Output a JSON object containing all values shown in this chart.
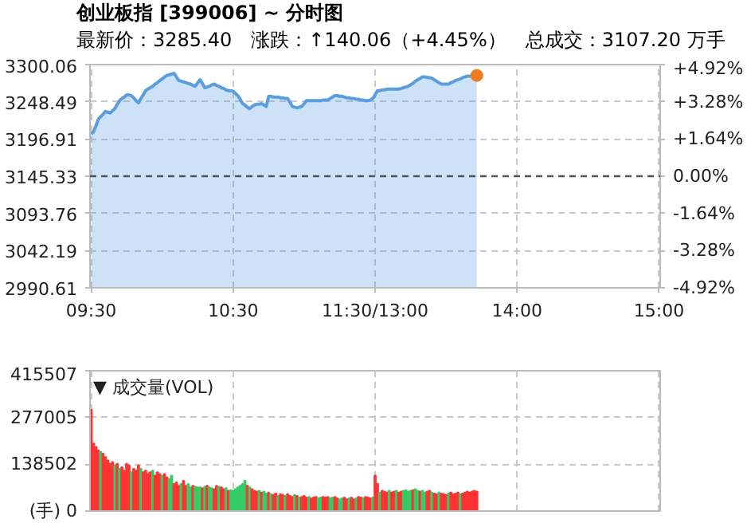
{
  "chart_data": [
    {
      "type": "area",
      "title": "创业板指 [399006] ~ 分时图",
      "subtitle": "最新价：3285.40　涨跌：↑140.06（+4.45%）　总成交：3107.20 万手",
      "categories": [
        "09:30",
        null,
        null,
        null,
        null,
        null,
        null,
        null,
        null,
        null,
        null,
        null,
        null,
        null,
        null,
        null,
        null,
        null,
        null,
        null,
        null,
        null,
        null,
        null,
        null,
        null,
        null,
        null,
        null,
        null,
        null,
        null,
        null,
        null,
        null,
        null,
        null,
        null,
        null,
        null,
        null,
        null,
        null,
        null,
        null,
        null,
        null,
        null,
        null,
        null,
        null,
        null,
        null,
        null,
        null,
        null,
        null,
        null,
        null,
        null,
        "10:30",
        null,
        null,
        null,
        null,
        null,
        null,
        null,
        null,
        null,
        null,
        null,
        null,
        null,
        null,
        null,
        null,
        null,
        null,
        null,
        null,
        null,
        null,
        null,
        null,
        null,
        null,
        null,
        null,
        null,
        null,
        null,
        null,
        null,
        null,
        null,
        null,
        null,
        null,
        null,
        null,
        null,
        null,
        null,
        null,
        null,
        null,
        null,
        null,
        null,
        null,
        null,
        null,
        null,
        null,
        null,
        null,
        null,
        null,
        null,
        "11:30/13:00",
        null,
        null,
        null,
        null,
        null,
        null,
        null,
        null,
        null,
        null,
        null,
        null,
        null,
        null,
        null,
        null,
        null,
        null,
        null,
        null,
        null,
        null,
        null,
        null,
        null,
        null,
        null,
        null,
        null,
        null,
        null,
        null,
        null,
        null,
        null,
        null,
        null,
        null,
        null,
        null,
        null,
        null,
        null,
        null,
        null,
        null,
        null,
        null,
        null,
        null,
        null,
        null,
        null,
        null,
        null,
        null,
        null,
        null,
        null,
        "14:00",
        null,
        null,
        null,
        null,
        null,
        null,
        null,
        null,
        null,
        null,
        null,
        null,
        null,
        null,
        null,
        null,
        null,
        null,
        null,
        null,
        null,
        null,
        null,
        null,
        null,
        null,
        null,
        null,
        null,
        null,
        null,
        null,
        null,
        null,
        null,
        null,
        null,
        null,
        null,
        null,
        null,
        null,
        null,
        null,
        null,
        null,
        null,
        null,
        null,
        null,
        null,
        null,
        null,
        null,
        null,
        null,
        null,
        null,
        null,
        "15:00"
      ],
      "series": [
        {
          "type": "area",
          "color": "#5b9ee0",
          "values": [
            3204,
            3207,
            3215,
            3224,
            3228,
            3231,
            3235,
            3234,
            3233,
            3236,
            3239,
            3245,
            3250,
            3253,
            3255,
            3258,
            3258,
            3257,
            3254,
            3250,
            3247,
            3253,
            3258,
            3264,
            3266,
            3268,
            3270,
            3273,
            3275,
            3278,
            3280,
            3283,
            3285,
            3286,
            3287,
            3288,
            3283,
            3278,
            3277,
            3276,
            3275,
            3274,
            3273,
            3271,
            3270,
            3275,
            3279,
            3274,
            3268,
            3269,
            3270,
            3272,
            3273,
            3271,
            3270,
            3268,
            3267,
            3265,
            3264,
            3264,
            3263,
            3260,
            3257,
            3252,
            3246,
            3244,
            3241,
            3239,
            3242,
            3244,
            3245,
            3245,
            3246,
            3244,
            3242,
            3256,
            3256,
            3255,
            3255,
            3255,
            3254,
            3254,
            3253,
            3253,
            3248,
            3242,
            3241,
            3240,
            3241,
            3242,
            3246,
            3250,
            3250,
            3250,
            3250,
            3250,
            3250,
            3250,
            3251,
            3251,
            3251,
            3253,
            3255,
            3257,
            3257,
            3256,
            3256,
            3255,
            3254,
            3254,
            3253,
            3253,
            3252,
            3252,
            3251,
            3251,
            3250,
            3250,
            3251,
            3253,
            3258,
            3264,
            3264,
            3265,
            3265,
            3266,
            3266,
            3266,
            3266,
            3266,
            3266,
            3267,
            3268,
            3269,
            3270,
            3272,
            3274,
            3277,
            3279,
            3281,
            3283,
            3283,
            3282,
            3282,
            3281,
            3279,
            3277,
            3275,
            3273,
            3273,
            3273,
            3273,
            3275,
            3276,
            3278,
            3279,
            3280,
            3282,
            3283,
            3284,
            3284,
            3284,
            3285,
            3285,
            null,
            null,
            null,
            null,
            null,
            null,
            null,
            null,
            null,
            null,
            null,
            null,
            null,
            null,
            null,
            null,
            null,
            null,
            null,
            null,
            null,
            null,
            null,
            null,
            null,
            null,
            null,
            null,
            null,
            null,
            null,
            null,
            null,
            null,
            null,
            null,
            null,
            null,
            null,
            null,
            null,
            null,
            null,
            null,
            null,
            null,
            null,
            null,
            null,
            null,
            null,
            null,
            null,
            null,
            null,
            null,
            null,
            null,
            null,
            null,
            null,
            null,
            null,
            null,
            null,
            null,
            null,
            null,
            null,
            null,
            null,
            null,
            null,
            null,
            null,
            null,
            null
          ]
        },
        {
          "type": "scatter",
          "marker": "circle",
          "color": "#f07a1e",
          "values": [
            null,
            null,
            null,
            null,
            null,
            null,
            null,
            null,
            null,
            null,
            null,
            null,
            null,
            null,
            null,
            null,
            null,
            null,
            null,
            null,
            null,
            null,
            null,
            null,
            null,
            null,
            null,
            null,
            null,
            null,
            null,
            null,
            null,
            null,
            null,
            null,
            null,
            null,
            null,
            null,
            null,
            null,
            null,
            null,
            null,
            null,
            null,
            null,
            null,
            null,
            null,
            null,
            null,
            null,
            null,
            null,
            null,
            null,
            null,
            null,
            null,
            null,
            null,
            null,
            null,
            null,
            null,
            null,
            null,
            null,
            null,
            null,
            null,
            null,
            null,
            null,
            null,
            null,
            null,
            null,
            null,
            null,
            null,
            null,
            null,
            null,
            null,
            null,
            null,
            null,
            null,
            null,
            null,
            null,
            null,
            null,
            null,
            null,
            null,
            null,
            null,
            null,
            null,
            null,
            null,
            null,
            null,
            null,
            null,
            null,
            null,
            null,
            null,
            null,
            null,
            null,
            null,
            null,
            null,
            null,
            null,
            null,
            null,
            null,
            null,
            null,
            null,
            null,
            null,
            null,
            null,
            null,
            null,
            null,
            null,
            null,
            null,
            null,
            null,
            null,
            null,
            null,
            null,
            null,
            null,
            null,
            null,
            null,
            null,
            null,
            null,
            null,
            null,
            null,
            null,
            null,
            null,
            null,
            null,
            null,
            null,
            null,
            null,
            3285,
            null,
            null,
            null,
            null,
            null,
            null,
            null,
            null,
            null,
            null,
            null,
            null,
            null,
            null,
            null,
            null,
            null,
            null,
            null,
            null,
            null,
            null,
            null,
            null,
            null,
            null,
            null,
            null,
            null,
            null,
            null,
            null,
            null,
            null,
            null,
            null,
            null,
            null,
            null,
            null,
            null,
            null,
            null,
            null,
            null,
            null,
            null,
            null,
            null,
            null,
            null,
            null,
            null,
            null,
            null,
            null,
            null,
            null,
            null,
            null,
            null,
            null,
            null,
            null,
            null,
            null,
            null,
            null,
            null,
            null,
            null,
            null,
            null,
            null,
            null,
            null,
            null
          ]
        }
      ],
      "ylim": [
        2990.61,
        3300.06
      ],
      "yticks": [
        2990.61,
        3042.19,
        3093.76,
        3145.33,
        3196.91,
        3248.49,
        3300.06
      ],
      "y2lim": [
        -4.92,
        4.92
      ],
      "y2ticks": [
        {
          "value": -4.92,
          "label": "-4.92%"
        },
        {
          "value": -3.28,
          "label": "-3.28%"
        },
        {
          "value": -1.64,
          "label": "-1.64%"
        },
        {
          "value": 0,
          "label": "0.00%"
        },
        {
          "value": 1.64,
          "label": "+1.64%"
        },
        {
          "value": 3.28,
          "label": "+3.28%"
        },
        {
          "value": 4.92,
          "label": "+4.92%"
        }
      ],
      "ref_lines": [
        {
          "axis": "y",
          "value": 3145.33,
          "color": "#555555",
          "line_style": "dashed"
        }
      ],
      "grid": true
    },
    {
      "type": "bar",
      "title": "▼ 成交量(VOL)",
      "categories": [
        null,
        null,
        null,
        null,
        null,
        null,
        null,
        null,
        null,
        null,
        null,
        null,
        null,
        null,
        null,
        null,
        null,
        null,
        null,
        null,
        null,
        null,
        null,
        null,
        null,
        null,
        null,
        null,
        null,
        null,
        null,
        null,
        null,
        null,
        null,
        null,
        null,
        null,
        null,
        null,
        null,
        null,
        null,
        null,
        null,
        null,
        null,
        null,
        null,
        null,
        null,
        null,
        null,
        null,
        null,
        null,
        null,
        null,
        null,
        null,
        null,
        null,
        null,
        null,
        null,
        null,
        null,
        null,
        null,
        null,
        null,
        null,
        null,
        null,
        null,
        null,
        null,
        null,
        null,
        null,
        null,
        null,
        null,
        null,
        null,
        null,
        null,
        null,
        null,
        null,
        null,
        null,
        null,
        null,
        null,
        null,
        null,
        null,
        null,
        null,
        null,
        null,
        null,
        null,
        null,
        null,
        null,
        null,
        null,
        null,
        null,
        null,
        null,
        null,
        null,
        null,
        null,
        null,
        null,
        null,
        null,
        null,
        null,
        null,
        null,
        null,
        null,
        null,
        null,
        null,
        null,
        null,
        null,
        null,
        null,
        null,
        null,
        null,
        null,
        null,
        null,
        null,
        null,
        null,
        null,
        null,
        null,
        null,
        null,
        null,
        null,
        null,
        null,
        null,
        null,
        null,
        null,
        null,
        null,
        null,
        null,
        null,
        null,
        null,
        null,
        null,
        null,
        null,
        null,
        null,
        null,
        null,
        null,
        null,
        null,
        null,
        null,
        null,
        null,
        null,
        null,
        null,
        null,
        null,
        null,
        null,
        null,
        null,
        null,
        null,
        null,
        null,
        null,
        null,
        null,
        null,
        null,
        null,
        null,
        null,
        null,
        null,
        null,
        null,
        null,
        null,
        null,
        null,
        null,
        null,
        null,
        null,
        null,
        null,
        null,
        null,
        null,
        null,
        null,
        null,
        null,
        null,
        null,
        null,
        null,
        null,
        null,
        null,
        null,
        null,
        null,
        null,
        null,
        null,
        null,
        null,
        null,
        null,
        null,
        null,
        null
      ],
      "values": [
        300000,
        200000,
        190000,
        180000,
        175000,
        170000,
        160000,
        150000,
        140000,
        145000,
        135000,
        140000,
        125000,
        130000,
        120000,
        140000,
        135000,
        115000,
        125000,
        120000,
        135000,
        125000,
        115000,
        120000,
        110000,
        115000,
        120000,
        105000,
        115000,
        110000,
        105000,
        110000,
        100000,
        95000,
        105000,
        80000,
        85000,
        75000,
        80000,
        90000,
        75000,
        80000,
        70000,
        75000,
        72000,
        70000,
        70000,
        68000,
        72000,
        75000,
        70000,
        68000,
        65000,
        75000,
        72000,
        70000,
        65000,
        68000,
        60000,
        62000,
        60000,
        65000,
        70000,
        75000,
        80000,
        90000,
        75000,
        70000,
        65000,
        60000,
        58000,
        60000,
        55000,
        58000,
        52000,
        55000,
        50000,
        48000,
        52000,
        45000,
        50000,
        48000,
        45000,
        50000,
        45000,
        42000,
        48000,
        45000,
        40000,
        42000,
        45000,
        40000,
        42000,
        38000,
        40000,
        42000,
        38000,
        40000,
        42000,
        40000,
        42000,
        38000,
        40000,
        42000,
        38000,
        35000,
        38000,
        40000,
        35000,
        38000,
        40000,
        35000,
        38000,
        42000,
        40000,
        38000,
        42000,
        40000,
        38000,
        40000,
        105000,
        80000,
        55000,
        60000,
        58000,
        55000,
        60000,
        55000,
        58000,
        60000,
        55000,
        58000,
        60000,
        62000,
        58000,
        60000,
        62000,
        65000,
        60000,
        58000,
        60000,
        55000,
        58000,
        60000,
        55000,
        52000,
        50000,
        55000,
        52000,
        50000,
        48000,
        52000,
        55000,
        50000,
        52000,
        55000,
        50000,
        52000,
        55000,
        58000,
        55000,
        58000,
        60000,
        58000,
        null,
        null,
        null,
        null,
        null,
        null,
        null,
        null,
        null,
        null,
        null,
        null,
        null,
        null,
        null,
        null,
        null,
        null,
        null,
        null,
        null,
        null,
        null,
        null,
        null,
        null,
        null,
        null,
        null,
        null,
        null,
        null,
        null,
        null,
        null,
        null,
        null,
        null,
        null,
        null,
        null,
        null,
        null,
        null,
        null,
        null,
        null,
        null,
        null,
        null,
        null,
        null,
        null,
        null,
        null,
        null,
        null,
        null,
        null,
        null,
        null,
        null,
        null,
        null,
        null,
        null,
        null,
        null,
        null,
        null,
        null,
        null,
        null,
        null,
        null,
        null,
        null
      ],
      "colors": [
        "#ff3333",
        "#ff3333",
        "#ff3333",
        "#ff3333",
        "#33cc66",
        "#ff3333",
        "#ff3333",
        "#ff3333",
        "#ff3333",
        "#ff3333",
        "#33cc66",
        "#ff3333",
        "#33cc66",
        "#ff3333",
        "#ff3333",
        "#ff3333",
        "#ff3333",
        "#33cc66",
        "#ff3333",
        "#ff3333",
        "#ff3333",
        "#33cc66",
        "#ff3333",
        "#ff3333",
        "#ff3333",
        "#ff3333",
        "#33cc66",
        "#ff3333",
        "#ff3333",
        "#ff3333",
        "#33cc66",
        "#ff3333",
        "#ff3333",
        "#33cc66",
        "#33cc66",
        "#ff3333",
        "#ff3333",
        "#ff3333",
        "#33cc66",
        "#ff3333",
        "#ff3333",
        "#33cc66",
        "#33cc66",
        "#ff3333",
        "#33cc66",
        "#33cc66",
        "#33cc66",
        "#ff3333",
        "#33cc66",
        "#ff3333",
        "#33cc66",
        "#33cc66",
        "#ff3333",
        "#ff3333",
        "#33cc66",
        "#ff3333",
        "#ff3333",
        "#33cc66",
        "#ff3333",
        "#33cc66",
        "#33cc66",
        "#33cc66",
        "#33cc66",
        "#33cc66",
        "#33cc66",
        "#33cc66",
        "#ff3333",
        "#33cc66",
        "#ff3333",
        "#ff3333",
        "#ff3333",
        "#33cc66",
        "#ff3333",
        "#33cc66",
        "#33cc66",
        "#ff3333",
        "#33cc66",
        "#ff3333",
        "#ff3333",
        "#33cc66",
        "#ff3333",
        "#ff3333",
        "#33cc66",
        "#ff3333",
        "#ff3333",
        "#ff3333",
        "#33cc66",
        "#ff3333",
        "#33cc66",
        "#ff3333",
        "#ff3333",
        "#ff3333",
        "#33cc66",
        "#ff3333",
        "#ff3333",
        "#ff3333",
        "#33cc66",
        "#33cc66",
        "#ff3333",
        "#ff3333",
        "#ff3333",
        "#33cc66",
        "#33cc66",
        "#ff3333",
        "#ff3333",
        "#33cc66",
        "#33cc66",
        "#ff3333",
        "#ff3333",
        "#33cc66",
        "#ff3333",
        "#ff3333",
        "#33cc66",
        "#ff3333",
        "#ff3333",
        "#33cc66",
        "#ff3333",
        "#ff3333",
        "#ff3333",
        "#33cc66",
        "#ff3333",
        "#ff3333",
        "#33cc66",
        "#ff3333",
        "#ff3333",
        "#ff3333",
        "#33cc66",
        "#ff3333",
        "#ff3333",
        "#33cc66",
        "#ff3333",
        "#ff3333",
        "#33cc66",
        "#33cc66",
        "#33cc66",
        "#33cc66",
        "#ff3333",
        "#33cc66",
        "#33cc66",
        "#ff3333",
        "#33cc66",
        "#33cc66",
        "#ff3333",
        "#ff3333",
        "#33cc66",
        "#ff3333",
        "#ff3333",
        "#33cc66",
        "#ff3333",
        "#ff3333",
        "#ff3333",
        "#33cc66",
        "#ff3333",
        "#ff3333",
        "#ff3333",
        "#ff3333",
        "#33cc66",
        "#ff3333",
        "#ff3333",
        "#ff3333",
        "#ff3333",
        "#ff3333",
        "#ff3333",
        "#ff3333",
        null,
        null,
        null,
        null,
        null,
        null,
        null,
        null,
        null,
        null,
        null,
        null,
        null,
        null,
        null,
        null,
        null,
        null,
        null,
        null,
        null,
        null,
        null,
        null,
        null,
        null,
        null,
        null,
        null,
        null,
        null,
        null,
        null,
        null,
        null,
        null,
        null,
        null,
        null,
        null,
        null,
        null,
        null,
        null,
        null,
        null,
        null,
        null,
        null,
        null,
        null,
        null,
        null,
        null,
        null,
        null,
        null,
        null,
        null,
        null,
        null,
        null,
        null,
        null,
        null,
        null,
        null,
        null,
        null,
        null,
        null,
        null,
        null,
        null,
        null,
        null,
        null
      ],
      "ylim": [
        0,
        415507
      ],
      "yticks": [
        {
          "value": 0,
          "label": "(手) 0"
        },
        138502,
        277005,
        415507
      ],
      "grid": true
    }
  ]
}
